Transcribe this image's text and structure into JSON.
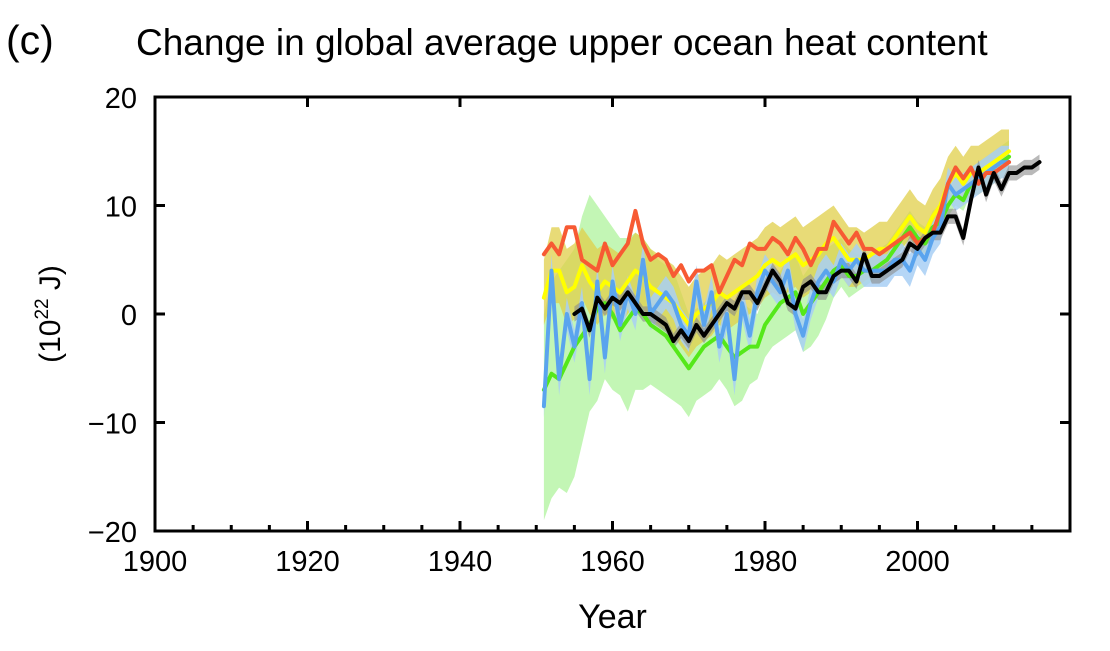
{
  "panel_label": "(c)",
  "chart_data": {
    "type": "line",
    "title": "Change in global average upper ocean heat content",
    "xlabel": "Year",
    "ylabel_base": "(10",
    "ylabel_exp": "22",
    "ylabel_unit": " J)",
    "xlim": [
      1900,
      2020
    ],
    "ylim": [
      -20,
      20
    ],
    "x_ticks": [
      1900,
      1920,
      1940,
      1960,
      1980,
      2000
    ],
    "x_tick_labels": [
      "1900",
      "1920",
      "1940",
      "1960",
      "1980",
      "2000"
    ],
    "y_ticks": [
      -20,
      -10,
      0,
      10,
      20
    ],
    "y_tick_labels": [
      "−20",
      "−10",
      "0",
      "10",
      "20"
    ],
    "series": [
      {
        "name": "green",
        "color": "#55e81a",
        "band_color": "#b8f5a8",
        "start": 1951,
        "values": [
          -7,
          -5.5,
          -6,
          -4.5,
          -3,
          -2,
          -1,
          0.5,
          1,
          0,
          -1.5,
          -0.5,
          0.5,
          0,
          -1,
          -1.5,
          -2,
          -3,
          -4,
          -5,
          -4,
          -3,
          -2.5,
          -2,
          -3,
          -4,
          -3.5,
          -3,
          -3,
          -1,
          0,
          1,
          1.5,
          2,
          0,
          1,
          2,
          3,
          4,
          4.5,
          3.5,
          3.5,
          4,
          4,
          4.5,
          5,
          6,
          7,
          8,
          7,
          6.5,
          8,
          8.5,
          10,
          11,
          10.5,
          12,
          12.5,
          13,
          13.5,
          14,
          14.5
        ],
        "band_lower": [
          -19,
          -17,
          -16,
          -16.5,
          -15,
          -12,
          -9,
          -8,
          -6,
          -7,
          -7.5,
          -9,
          -7,
          -7,
          -6.5,
          -7,
          -7.5,
          -8,
          -8.5,
          -9.5,
          -8,
          -7.5,
          -7,
          -6,
          -7,
          -8.5,
          -8,
          -6.5,
          -6,
          -4,
          -3,
          -2.5,
          -2,
          -1.5,
          -3.5,
          -3,
          -2,
          -0.5,
          1.5,
          2.5,
          1.5,
          2,
          2.5,
          3,
          3.5,
          4,
          5,
          6,
          7,
          6,
          5.5,
          7,
          7.5,
          9,
          10,
          9.5,
          11,
          11.5,
          12,
          12.5,
          13,
          13.5
        ],
        "band_upper": [
          0,
          3,
          4,
          5,
          6,
          9,
          11,
          10,
          9,
          8,
          7,
          7,
          7.5,
          7,
          6,
          5,
          4.5,
          4,
          2,
          0,
          0.5,
          1,
          2,
          2.5,
          1.5,
          0.5,
          1,
          0.5,
          0,
          2,
          3,
          4,
          5,
          5.5,
          3.5,
          4.5,
          5.5,
          6,
          6.5,
          7,
          6,
          5.5,
          5.5,
          5.5,
          6,
          6.5,
          7.5,
          8.5,
          9.5,
          8.5,
          8,
          9.5,
          10,
          11.5,
          12.5,
          12,
          13.5,
          14,
          14.5,
          15,
          15.5,
          16
        ]
      },
      {
        "name": "yellow",
        "color": "#ffff00",
        "band_color": "#e0cf4a",
        "start": 1951,
        "values": [
          1.5,
          4,
          4,
          2,
          2.5,
          4.5,
          3,
          2,
          3,
          2.5,
          2,
          3,
          4,
          3.5,
          2.5,
          2,
          1.5,
          1,
          0,
          -1,
          0,
          0.5,
          1,
          2,
          1.5,
          2,
          2.5,
          3,
          3.5,
          4.5,
          5,
          4.5,
          5,
          5.5,
          4.5,
          5,
          5.5,
          6.5,
          7,
          6,
          5,
          5,
          5,
          5.5,
          6,
          6,
          7,
          8,
          9,
          8,
          7.5,
          9,
          10,
          12,
          13,
          12,
          13,
          13,
          13.5,
          14,
          14.5,
          15
        ],
        "band_lower": [
          -1,
          1,
          1,
          -1,
          -0.5,
          1.5,
          0,
          -1,
          0,
          -0.5,
          -1,
          0,
          1,
          0.5,
          -0.5,
          -1,
          -1.5,
          -2,
          -3,
          -4,
          -3,
          -2.5,
          -2,
          -1,
          -1.5,
          -1,
          -0.5,
          0,
          0.5,
          1.5,
          2,
          1.5,
          2,
          2.5,
          1.5,
          2,
          2.5,
          3.5,
          4,
          3.5,
          2.5,
          2.5,
          3,
          3.5,
          4,
          4,
          5,
          6,
          7,
          6,
          5.5,
          7,
          8,
          10,
          11,
          10,
          11,
          11,
          11.5,
          12,
          12.5,
          13
        ],
        "band_upper": [
          5,
          8,
          8,
          6,
          6.5,
          8,
          7,
          6,
          6.5,
          6,
          5.5,
          6.5,
          7.5,
          7,
          6,
          5.5,
          5,
          4.5,
          3.5,
          2.5,
          3.5,
          4,
          4.5,
          5.5,
          5,
          5.5,
          6,
          6.5,
          7,
          8,
          8.5,
          8,
          8.5,
          9,
          8,
          8.5,
          9,
          9.5,
          10,
          9,
          8,
          8,
          7.5,
          8,
          8.5,
          8.5,
          9.5,
          10.5,
          11.5,
          10.5,
          10,
          11.5,
          12.5,
          14.5,
          15.5,
          14.5,
          15.5,
          15.5,
          16,
          16.5,
          17,
          17
        ]
      },
      {
        "name": "blue",
        "color": "#5aa4ee",
        "band_color": "#a8cff5",
        "start": 1951,
        "values": [
          -8.5,
          4,
          -6,
          0,
          -3,
          1,
          -6,
          3,
          -4,
          3,
          -1,
          2,
          0,
          5,
          0,
          1,
          2,
          1,
          -1,
          -2,
          3,
          -1,
          2,
          -3,
          0,
          -6,
          1,
          -2,
          2,
          4,
          3,
          2,
          4,
          0,
          -2,
          1,
          3,
          4,
          3,
          5,
          4,
          5,
          4,
          4,
          4,
          4,
          5,
          5,
          4,
          6,
          5,
          7,
          8,
          12,
          11,
          11.5,
          12,
          12.5,
          13,
          13.5,
          14,
          14
        ],
        "band_lower": [
          -9.5,
          2.5,
          -7.5,
          -1.5,
          -4.5,
          -0.5,
          -7.5,
          1.5,
          -5.5,
          1.5,
          -2.5,
          0.5,
          -1.5,
          3.5,
          -1.5,
          -0.5,
          0.5,
          -0.5,
          -2.5,
          -3.5,
          1.5,
          -2.5,
          0.5,
          -4.5,
          -1.5,
          -7.5,
          -0.5,
          -3.5,
          0.5,
          2.5,
          1.5,
          0.5,
          2.5,
          -1.5,
          -3.5,
          -0.5,
          1.5,
          2.5,
          1.5,
          3.5,
          2.5,
          3.5,
          2.5,
          2.5,
          2.5,
          2.5,
          3.5,
          3.5,
          2.5,
          4.5,
          3.5,
          5.5,
          6.5,
          10.5,
          9.5,
          10,
          10.5,
          11,
          11.5,
          12,
          12.5,
          12.5
        ],
        "band_upper": [
          -7.5,
          5.5,
          -4.5,
          1.5,
          -1.5,
          2.5,
          -4.5,
          4.5,
          -2.5,
          4.5,
          0.5,
          3.5,
          1.5,
          6.5,
          1.5,
          2.5,
          3.5,
          2.5,
          0.5,
          -0.5,
          4.5,
          0.5,
          3.5,
          -1.5,
          1.5,
          -4.5,
          2.5,
          -0.5,
          3.5,
          5.5,
          4.5,
          3.5,
          5.5,
          1.5,
          -0.5,
          2.5,
          4.5,
          5.5,
          4.5,
          6.5,
          5.5,
          6.5,
          5.5,
          5.5,
          5.5,
          5.5,
          6.5,
          6.5,
          5.5,
          7.5,
          6.5,
          8.5,
          9.5,
          13.5,
          12.5,
          13,
          13.5,
          14,
          14.5,
          15,
          15.5,
          15.5
        ]
      },
      {
        "name": "red",
        "color": "#f75a33",
        "start": 1951,
        "values": [
          5.5,
          6.5,
          5.5,
          8,
          8,
          5,
          4.5,
          4,
          6.5,
          4.5,
          5.5,
          6.5,
          9.5,
          6.5,
          5,
          5.5,
          5,
          3.5,
          4.5,
          3,
          4,
          4,
          4.5,
          2,
          3.5,
          5,
          4.5,
          6.5,
          6,
          6,
          7,
          6.5,
          5.5,
          7,
          6,
          4.5,
          6,
          6,
          8.5,
          7.5,
          6.5,
          7.5,
          6,
          6,
          5.5,
          6,
          6.5,
          7,
          7.5,
          6.5,
          7,
          7.5,
          9.5,
          12,
          13.5,
          12.5,
          13.5,
          12,
          13,
          13,
          13.5,
          14
        ],
        "band_lower": [],
        "band_upper": []
      },
      {
        "name": "black",
        "color": "#000000",
        "band_color": "#8a8a8a",
        "start": 1955,
        "values": [
          0,
          0.5,
          -1.5,
          1.5,
          0.5,
          1.5,
          1,
          2,
          1,
          0,
          0,
          -0.5,
          -1,
          -2.5,
          -1.5,
          -2.5,
          -1,
          -2,
          -1,
          0,
          1,
          0.5,
          2,
          2,
          1,
          2.5,
          4,
          3,
          1,
          0.5,
          2.5,
          3,
          2,
          2,
          3.5,
          4,
          4,
          3,
          5.5,
          3.5,
          3.5,
          4,
          4.5,
          5,
          6.5,
          6,
          7,
          7.5,
          7.5,
          9,
          9,
          7,
          10.5,
          13.5,
          11,
          13,
          11.5,
          13,
          13,
          13.5,
          13.5,
          14
        ],
        "band_lower": [
          -0.7,
          -0.2,
          -2.2,
          0.8,
          -0.2,
          0.8,
          0.3,
          1.3,
          0.3,
          -0.7,
          -0.7,
          -1.2,
          -1.7,
          -3.2,
          -2.2,
          -3.2,
          -1.7,
          -2.7,
          -1.7,
          -0.7,
          0.3,
          -0.2,
          1.3,
          1.3,
          0.3,
          1.8,
          3.3,
          2.3,
          0.3,
          -0.2,
          1.8,
          2.3,
          1.3,
          1.3,
          2.8,
          3.3,
          3.3,
          2.3,
          4.8,
          2.8,
          2.8,
          3.3,
          3.8,
          4.3,
          5.8,
          5.3,
          6.3,
          6.8,
          6.8,
          8.3,
          8.3,
          6.3,
          9.8,
          12.8,
          10.3,
          12.3,
          10.8,
          12.3,
          12.3,
          12.8,
          12.8,
          13.3
        ],
        "band_upper": [
          0.7,
          1.2,
          -0.8,
          2.2,
          1.2,
          2.2,
          1.7,
          2.7,
          1.7,
          0.7,
          0.7,
          0.2,
          -0.3,
          -1.8,
          -0.8,
          -1.8,
          -0.3,
          -1.3,
          -0.3,
          0.7,
          1.7,
          1.2,
          2.7,
          2.7,
          1.7,
          3.2,
          4.7,
          3.7,
          1.7,
          1.2,
          3.2,
          3.7,
          2.7,
          2.7,
          4.2,
          4.7,
          4.7,
          3.7,
          6.2,
          4.2,
          4.2,
          4.7,
          5.2,
          5.7,
          7.2,
          6.7,
          7.7,
          8.2,
          8.2,
          9.7,
          9.7,
          7.7,
          11.2,
          14.2,
          11.7,
          13.7,
          12.2,
          13.7,
          13.7,
          14.2,
          14.2,
          14.7
        ]
      }
    ]
  }
}
